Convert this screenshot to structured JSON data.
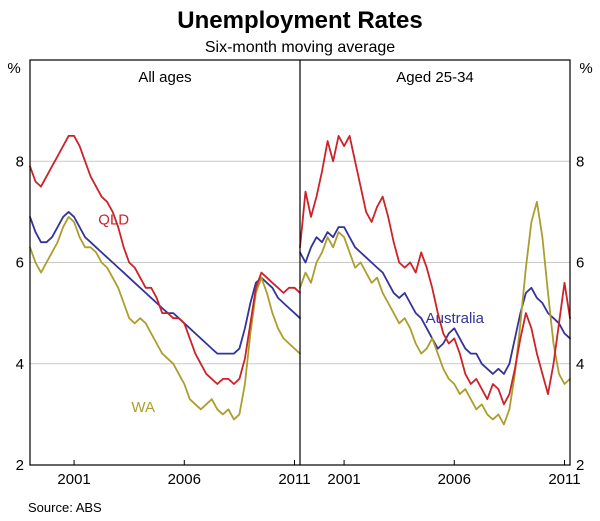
{
  "page": {
    "title": "Unemployment Rates",
    "subtitle": "Six-month moving average",
    "source": "Source: ABS"
  },
  "colors": {
    "qld": "#cc2229",
    "wa": "#ab9e2d",
    "australia": "#333399",
    "grid": "#c9c9c9",
    "axis": "#000000",
    "background": "#ffffff"
  },
  "chart_data": {
    "type": "line",
    "title": "Unemployment Rates",
    "subtitle": "Six-month moving average",
    "unit": "%",
    "ylim": [
      2,
      10
    ],
    "yticks": [
      2,
      4,
      6,
      8
    ],
    "gridlines": [
      4,
      6,
      8
    ],
    "xlim": [
      1999,
      2011.25
    ],
    "x_start": 1999,
    "x_step": 0.25,
    "grid": true,
    "legend_position": "inline-annotations",
    "xticks": [
      {
        "value": 2001,
        "label": "2001"
      },
      {
        "value": 2006,
        "label": "2006"
      },
      {
        "value": 2011,
        "label": "2011"
      }
    ],
    "panels": [
      {
        "label": "All ages",
        "annotations": [
          {
            "text": "QLD",
            "x": 2002.1,
            "y": 6.85,
            "color": "qld"
          },
          {
            "text": "WA",
            "x": 2003.6,
            "y": 3.15,
            "color": "wa"
          }
        ],
        "series": [
          {
            "name": "Australia",
            "color": "australia",
            "values": [
              6.9,
              6.6,
              6.4,
              6.4,
              6.5,
              6.7,
              6.9,
              7.0,
              6.9,
              6.7,
              6.5,
              6.4,
              6.3,
              6.2,
              6.1,
              6.0,
              5.9,
              5.8,
              5.7,
              5.6,
              5.5,
              5.4,
              5.3,
              5.2,
              5.1,
              5.0,
              5.0,
              4.9,
              4.8,
              4.7,
              4.6,
              4.5,
              4.4,
              4.3,
              4.2,
              4.2,
              4.2,
              4.2,
              4.3,
              4.7,
              5.2,
              5.6,
              5.7,
              5.6,
              5.5,
              5.3,
              5.2,
              5.1,
              5.0,
              4.9
            ]
          },
          {
            "name": "WA",
            "color": "wa",
            "values": [
              6.3,
              6.0,
              5.8,
              6.0,
              6.2,
              6.4,
              6.7,
              6.9,
              6.8,
              6.5,
              6.3,
              6.3,
              6.2,
              6.0,
              5.9,
              5.7,
              5.5,
              5.2,
              4.9,
              4.8,
              4.9,
              4.8,
              4.6,
              4.4,
              4.2,
              4.1,
              4.0,
              3.8,
              3.6,
              3.3,
              3.2,
              3.1,
              3.2,
              3.3,
              3.1,
              3.0,
              3.1,
              2.9,
              3.0,
              3.6,
              4.6,
              5.4,
              5.7,
              5.4,
              5.0,
              4.7,
              4.5,
              4.4,
              4.3,
              4.2
            ]
          },
          {
            "name": "QLD",
            "color": "qld",
            "values": [
              7.9,
              7.6,
              7.5,
              7.7,
              7.9,
              8.1,
              8.3,
              8.5,
              8.5,
              8.3,
              8.0,
              7.7,
              7.5,
              7.3,
              7.2,
              7.0,
              6.7,
              6.3,
              6.0,
              5.9,
              5.7,
              5.5,
              5.5,
              5.3,
              5.0,
              5.0,
              4.9,
              4.9,
              4.8,
              4.5,
              4.2,
              4.0,
              3.8,
              3.7,
              3.6,
              3.7,
              3.7,
              3.6,
              3.7,
              4.1,
              4.8,
              5.5,
              5.8,
              5.7,
              5.6,
              5.5,
              5.4,
              5.5,
              5.5,
              5.4
            ]
          }
        ]
      },
      {
        "label": "Aged 25-34",
        "annotations": [
          {
            "text": "Australia",
            "x": 2004.7,
            "y": 4.9,
            "color": "australia"
          }
        ],
        "series": [
          {
            "name": "Australia",
            "color": "australia",
            "values": [
              6.2,
              6.0,
              6.3,
              6.5,
              6.4,
              6.6,
              6.5,
              6.7,
              6.7,
              6.5,
              6.3,
              6.2,
              6.1,
              6.0,
              5.9,
              5.8,
              5.6,
              5.4,
              5.3,
              5.4,
              5.2,
              5.0,
              4.9,
              4.7,
              4.5,
              4.3,
              4.4,
              4.6,
              4.7,
              4.5,
              4.3,
              4.2,
              4.2,
              4.0,
              3.9,
              3.8,
              3.9,
              3.8,
              4.0,
              4.5,
              5.0,
              5.4,
              5.5,
              5.3,
              5.2,
              5.0,
              4.9,
              4.8,
              4.6,
              4.5
            ]
          },
          {
            "name": "WA",
            "color": "wa",
            "values": [
              5.5,
              5.8,
              5.6,
              6.0,
              6.2,
              6.5,
              6.3,
              6.6,
              6.5,
              6.2,
              5.9,
              6.0,
              5.8,
              5.6,
              5.7,
              5.4,
              5.2,
              5.0,
              4.8,
              4.9,
              4.7,
              4.4,
              4.2,
              4.3,
              4.5,
              4.2,
              3.9,
              3.7,
              3.6,
              3.4,
              3.5,
              3.3,
              3.1,
              3.2,
              3.0,
              2.9,
              3.0,
              2.8,
              3.1,
              3.8,
              4.8,
              5.9,
              6.8,
              7.2,
              6.5,
              5.4,
              4.4,
              3.8,
              3.6,
              3.7
            ]
          },
          {
            "name": "QLD",
            "color": "qld",
            "values": [
              6.3,
              7.4,
              6.9,
              7.3,
              7.8,
              8.4,
              8.0,
              8.5,
              8.3,
              8.5,
              8.0,
              7.5,
              7.0,
              6.8,
              7.1,
              7.3,
              6.9,
              6.4,
              6.0,
              5.9,
              6.0,
              5.8,
              6.2,
              5.9,
              5.5,
              5.0,
              4.6,
              4.4,
              4.5,
              4.2,
              3.8,
              3.6,
              3.7,
              3.5,
              3.3,
              3.6,
              3.5,
              3.2,
              3.4,
              3.9,
              4.5,
              5.0,
              4.7,
              4.2,
              3.8,
              3.4,
              4.0,
              4.8,
              5.6,
              4.9
            ]
          }
        ]
      }
    ]
  }
}
